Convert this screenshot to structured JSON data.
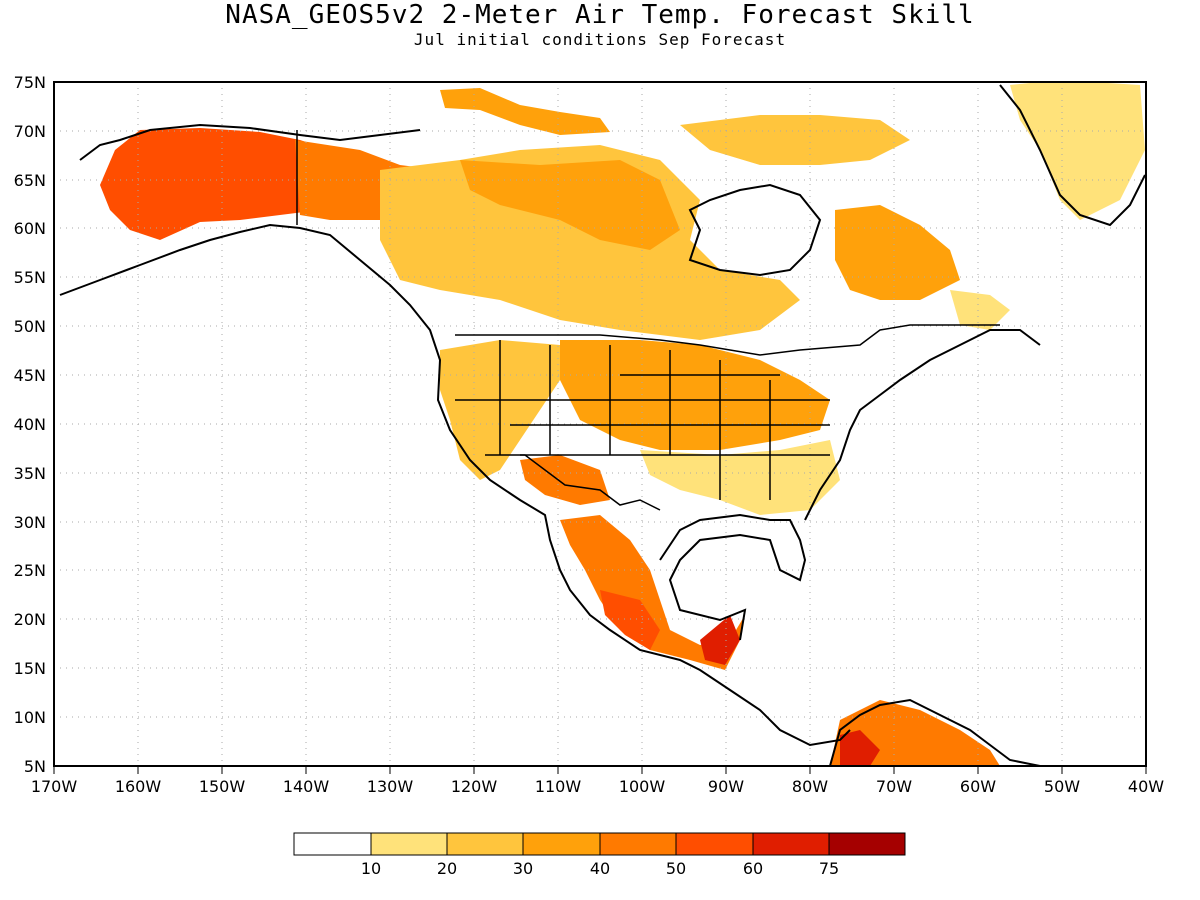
{
  "title": "NASA_GEOS5v2 2-Meter Air Temp. Forecast Skill",
  "subtitle": "Jul initial conditions  Sep Forecast",
  "map": {
    "lon_range": [
      -170,
      -40
    ],
    "lat_range": [
      5,
      75
    ],
    "lat_labels": [
      "5N",
      "10N",
      "15N",
      "20N",
      "25N",
      "30N",
      "35N",
      "40N",
      "45N",
      "50N",
      "55N",
      "60N",
      "65N",
      "70N",
      "75N"
    ],
    "lon_labels": [
      "170W",
      "160W",
      "150W",
      "140W",
      "130W",
      "120W",
      "110W",
      "100W",
      "90W",
      "80W",
      "70W",
      "60W",
      "50W",
      "40W"
    ]
  },
  "colorbar": {
    "labels": [
      "10",
      "20",
      "30",
      "40",
      "50",
      "60",
      "75"
    ],
    "colors": [
      "#ffffff",
      "#ffe27a",
      "#ffc53d",
      "#ffa10b",
      "#ff7a00",
      "#ff4e00",
      "#e01e00",
      "#a50000"
    ]
  }
}
